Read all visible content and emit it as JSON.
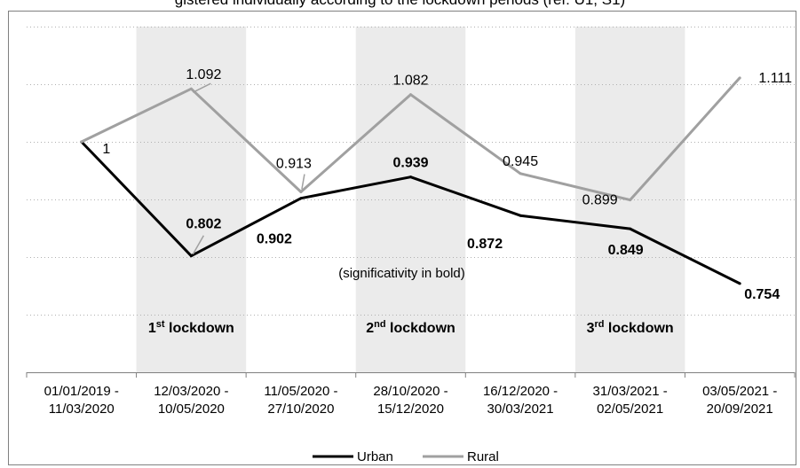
{
  "page_title_partial": "gistered individually  according to the lockdown periods (ref: U1, S1)",
  "chart_data": {
    "type": "line",
    "categories": [
      "01/01/2019 - 11/03/2020",
      "12/03/2020 - 10/05/2020",
      "11/05/2020 - 27/10/2020",
      "28/10/2020 - 15/12/2020",
      "16/12/2020 - 30/03/2021",
      "31/03/2021 - 02/05/2021",
      "03/05/2021 - 20/09/2021"
    ],
    "category_lines": [
      [
        "01/01/2019 -",
        "11/03/2020"
      ],
      [
        "12/03/2020 -",
        "10/05/2020"
      ],
      [
        "11/05/2020 -",
        "27/10/2020"
      ],
      [
        "28/10/2020 -",
        "15/12/2020"
      ],
      [
        "16/12/2020 -",
        "30/03/2021"
      ],
      [
        "31/03/2021 -",
        "02/05/2021"
      ],
      [
        "03/05/2021 -",
        "20/09/2021"
      ]
    ],
    "series": [
      {
        "name": "Urban",
        "color": "#000000",
        "values": [
          1,
          0.802,
          0.902,
          0.939,
          0.872,
          0.849,
          0.754
        ],
        "labels": [
          "",
          "0.802",
          "0.902",
          "0.939",
          "0.872",
          "0.849",
          "0.754"
        ],
        "bold": true
      },
      {
        "name": "Rural",
        "color": "#a0a0a0",
        "values": [
          1,
          1.092,
          0.913,
          1.082,
          0.945,
          0.899,
          1.111
        ],
        "labels": [
          "1",
          "1.092",
          "0.913",
          "1.082",
          "0.945",
          "0.899",
          "1.111"
        ],
        "bold": false
      }
    ],
    "shaded_periods": [
      1,
      3,
      5
    ],
    "lockdowns": [
      {
        "category_index": 1,
        "ordinal": "1",
        "suffix": "st",
        "word": "lockdown"
      },
      {
        "category_index": 3,
        "ordinal": "2",
        "suffix": "nd",
        "word": "lockdown"
      },
      {
        "category_index": 5,
        "ordinal": "3",
        "suffix": "rd",
        "word": "lockdown"
      }
    ],
    "annotation": "(significativity in bold)",
    "ylim": [
      0.6,
      1.2
    ],
    "grid": true,
    "legend_position": "bottom"
  }
}
